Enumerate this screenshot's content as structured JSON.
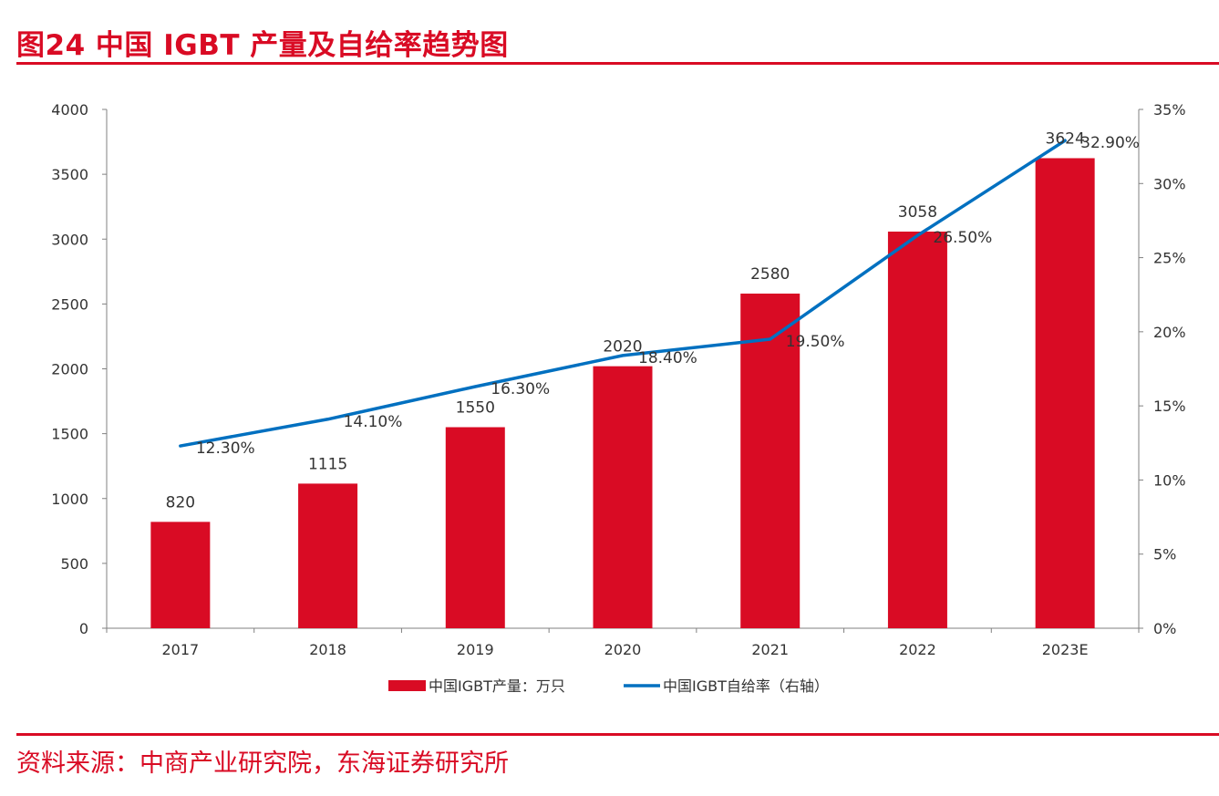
{
  "figure": {
    "title": "图24  中国 IGBT 产量及自给率趋势图",
    "source": "资料来源：中商产业研究院，东海证券研究所"
  },
  "chart_data": {
    "type": "bar",
    "categories": [
      "2017",
      "2018",
      "2019",
      "2020",
      "2021",
      "2022",
      "2023E"
    ],
    "series": [
      {
        "name": "中国IGBT产量：万只",
        "type": "bar",
        "axis": "left",
        "color": "#d90b24",
        "values": [
          820,
          1115,
          1550,
          2020,
          2580,
          3058,
          3624
        ],
        "labels": [
          "820",
          "1115",
          "1550",
          "2020",
          "2580",
          "3058",
          "3624"
        ]
      },
      {
        "name": "中国IGBT自给率（右轴）",
        "type": "line",
        "axis": "right",
        "color": "#0070c0",
        "values": [
          12.3,
          14.1,
          16.3,
          18.4,
          19.5,
          26.5,
          32.9
        ],
        "labels": [
          "12.30%",
          "14.10%",
          "16.30%",
          "18.40%",
          "19.50%",
          "26.50%",
          "32.90%"
        ]
      }
    ],
    "y_left": {
      "range": [
        0,
        4000
      ],
      "ticks": [
        0,
        500,
        1000,
        1500,
        2000,
        2500,
        3000,
        3500,
        4000
      ],
      "tick_labels": [
        "0",
        "500",
        "1000",
        "1500",
        "2000",
        "2500",
        "3000",
        "3500",
        "4000"
      ]
    },
    "y_right": {
      "range": [
        0,
        35
      ],
      "ticks": [
        0,
        5,
        10,
        15,
        20,
        25,
        30,
        35
      ],
      "tick_labels": [
        "0%",
        "5%",
        "10%",
        "15%",
        "20%",
        "25%",
        "30%",
        "35%"
      ]
    },
    "grid": false,
    "legend_position": "bottom"
  }
}
